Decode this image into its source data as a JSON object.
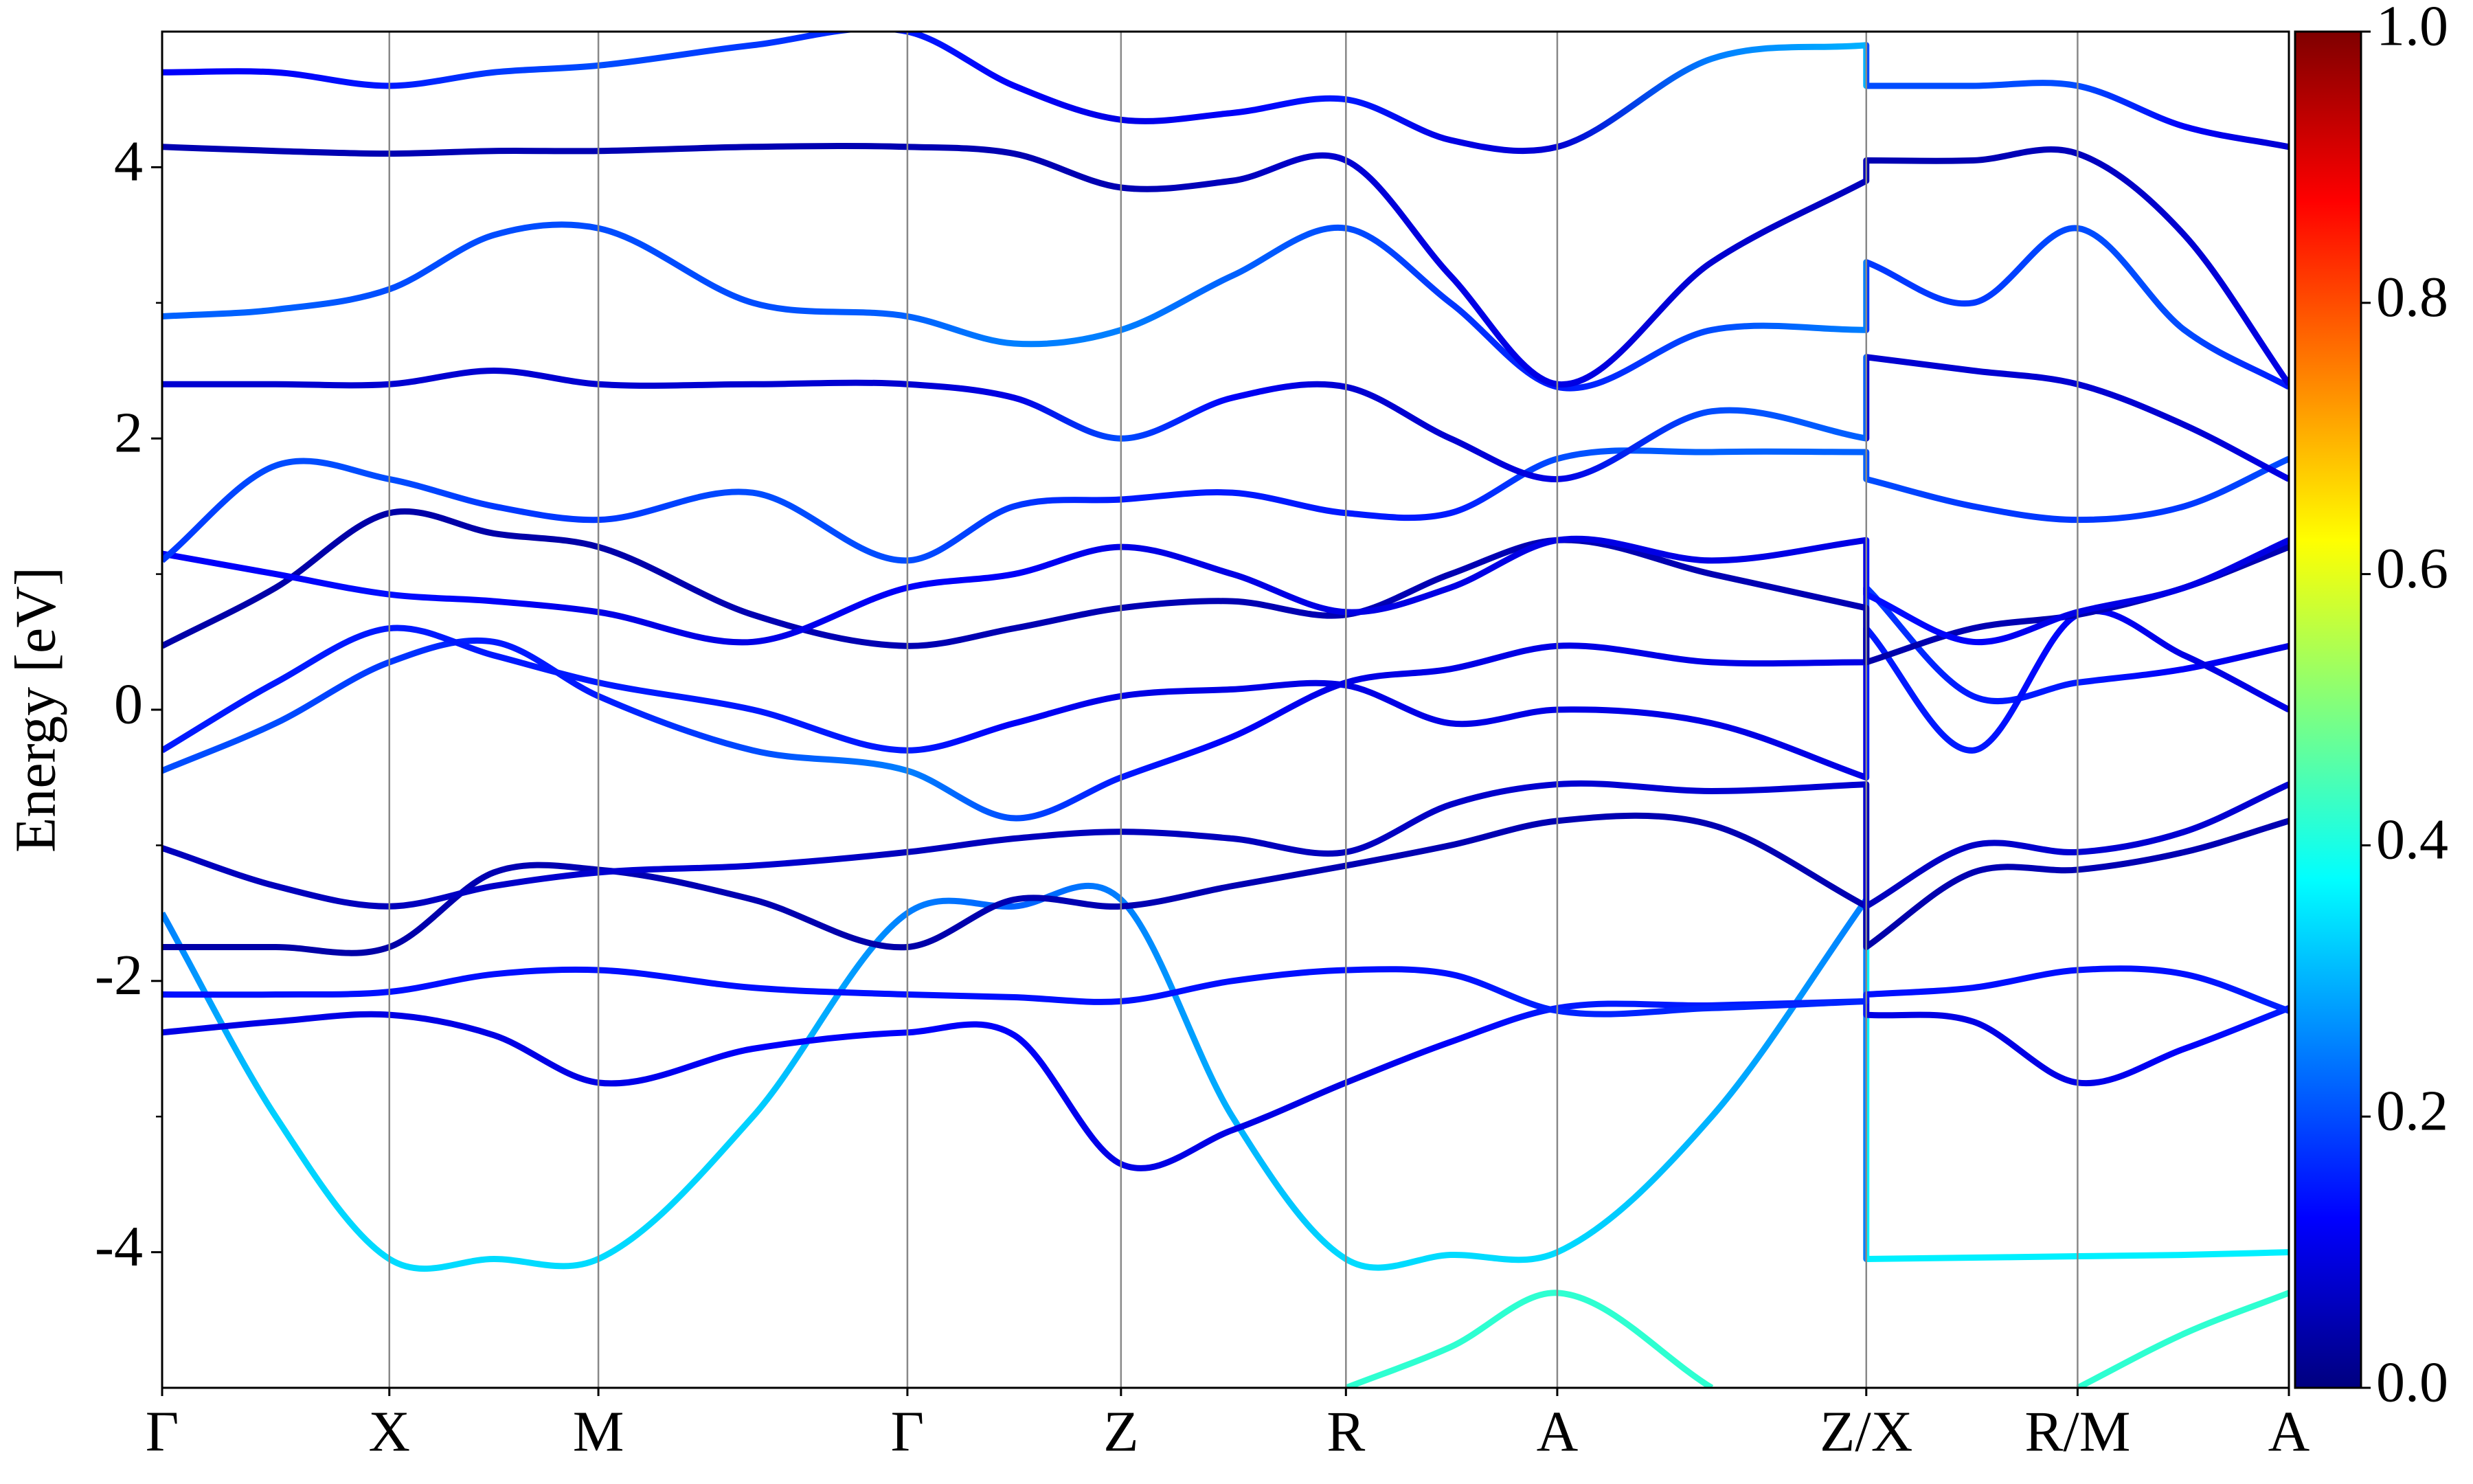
{
  "chart_data": {
    "type": "band",
    "ylabel": "Energy [eV]",
    "xlim": [
      0,
      9.36
    ],
    "ylim": [
      -5,
      5
    ],
    "yticks": [
      -4,
      -2,
      0,
      2,
      4
    ],
    "yminorticks": [
      -3,
      -1,
      1,
      3
    ],
    "xticks": [
      {
        "value": 0,
        "label": "Γ"
      },
      {
        "value": 1.0,
        "label": "X"
      },
      {
        "value": 1.92,
        "label": "M"
      },
      {
        "value": 3.28,
        "label": "Γ"
      },
      {
        "value": 4.22,
        "label": "Z"
      },
      {
        "value": 5.21,
        "label": "R"
      },
      {
        "value": 6.14,
        "label": "A"
      },
      {
        "value": 7.5,
        "label": "Z/X"
      },
      {
        "value": 8.43,
        "label": "R/M"
      },
      {
        "value": 9.36,
        "label": "A"
      }
    ],
    "grid": true,
    "colormap": [
      "#00007f",
      "#0000ff",
      "#007fff",
      "#00ffff",
      "#7fff7f",
      "#ffff00",
      "#ff7f00",
      "#ff0000",
      "#7f0000"
    ],
    "colorbar": {
      "lim": [
        0,
        1
      ],
      "ticks": [
        {
          "value": 0,
          "label": "0.0"
        },
        0.2,
        0.4,
        0.6,
        0.8,
        {
          "value": 1,
          "label": "1.0"
        }
      ]
    },
    "x": [
      0,
      0.5,
      1.0,
      1.46,
      1.92,
      2.6,
      3.28,
      3.75,
      4.22,
      4.71,
      5.21,
      5.67,
      6.14,
      6.82,
      7.5,
      7.5,
      7.97,
      8.43,
      8.9,
      9.36
    ],
    "series": [
      {
        "values": [
          -1.5,
          -3.0,
          -4.05,
          -4.05,
          -4.05,
          -3.0,
          -1.5,
          -1.45,
          -1.4,
          -3.0,
          -4.05,
          -4.02,
          -4.0,
          -3.0,
          -1.4,
          -4.05,
          -4.04,
          -4.03,
          -4.02,
          -4.0
        ],
        "weights": [
          0.25,
          0.33,
          0.34,
          0.34,
          0.34,
          0.33,
          0.25,
          0.22,
          0.25,
          0.3,
          0.34,
          0.34,
          0.34,
          0.3,
          0.25,
          0.36,
          0.36,
          0.36,
          0.36,
          0.36
        ]
      },
      {
        "values": [
          -2.38,
          -2.3,
          -2.25,
          -2.4,
          -2.75,
          -2.5,
          -2.38,
          -2.4,
          -3.35,
          -3.1,
          -2.75,
          -2.45,
          -2.2,
          -2.18,
          -2.15,
          -2.25,
          -2.3,
          -2.75,
          -2.5,
          -2.2
        ],
        "weights": [
          0.1,
          0.1,
          0.1,
          0.1,
          0.1,
          0.12,
          0.12,
          0.12,
          0.1,
          0.1,
          0.1,
          0.12,
          0.15,
          0.15,
          0.15,
          0.1,
          0.1,
          0.1,
          0.12,
          0.15
        ]
      },
      {
        "values": [
          -2.1,
          -2.1,
          -2.08,
          -1.95,
          -1.92,
          -2.05,
          -2.1,
          -2.12,
          -2.15,
          -2.0,
          -1.92,
          -1.95,
          -2.22,
          -2.2,
          -2.15,
          -2.1,
          -2.05,
          -1.92,
          -1.95,
          -2.22
        ],
        "weights": [
          0.14,
          0.14,
          0.14,
          0.14,
          0.14,
          0.14,
          0.14,
          0.14,
          0.14,
          0.14,
          0.14,
          0.14,
          0.16,
          0.16,
          0.16,
          0.14,
          0.14,
          0.14,
          0.14,
          0.16
        ]
      },
      {
        "values": [
          -1.75,
          -1.75,
          -1.75,
          -1.2,
          -1.18,
          -1.4,
          -1.75,
          -1.4,
          -1.45,
          -1.3,
          -1.15,
          -1.0,
          -0.82,
          -0.85,
          -1.45,
          -1.75,
          -1.2,
          -1.18,
          -1.05,
          -0.82
        ],
        "weights": [
          0.04,
          0.04,
          0.04,
          0.05,
          0.05,
          0.05,
          0.04,
          0.05,
          0.05,
          0.05,
          0.05,
          0.05,
          0.05,
          0.05,
          0.05,
          0.04,
          0.05,
          0.05,
          0.05,
          0.05
        ]
      },
      {
        "values": [
          -1.02,
          -1.3,
          -1.45,
          -1.3,
          -1.2,
          -1.15,
          -1.05,
          -0.95,
          -0.9,
          -0.95,
          -1.05,
          -0.7,
          -0.55,
          -0.6,
          -0.55,
          -1.45,
          -1.0,
          -1.05,
          -0.9,
          -0.55
        ],
        "weights": [
          0.06,
          0.06,
          0.06,
          0.07,
          0.08,
          0.08,
          0.06,
          0.06,
          0.06,
          0.06,
          0.06,
          0.07,
          0.08,
          0.08,
          0.08,
          0.06,
          0.07,
          0.08,
          0.08,
          0.08
        ]
      },
      {
        "values": [
          -0.45,
          -0.1,
          0.35,
          0.5,
          0.1,
          -0.3,
          -0.45,
          -0.8,
          -0.5,
          -0.2,
          0.2,
          0.3,
          0.47,
          0.35,
          0.35,
          0.9,
          0.1,
          0.2,
          0.3,
          0.47
        ],
        "weights": [
          0.2,
          0.2,
          0.18,
          0.15,
          0.15,
          0.2,
          0.25,
          0.2,
          0.15,
          0.12,
          0.1,
          0.1,
          0.1,
          0.1,
          0.1,
          0.18,
          0.15,
          0.15,
          0.12,
          0.1
        ]
      },
      {
        "values": [
          -0.3,
          0.2,
          0.6,
          0.4,
          0.2,
          0.0,
          -0.3,
          -0.1,
          0.1,
          0.15,
          0.18,
          -0.1,
          0.0,
          -0.1,
          -0.5,
          0.6,
          -0.3,
          0.7,
          0.4,
          0.0
        ],
        "weights": [
          0.15,
          0.15,
          0.15,
          0.15,
          0.15,
          0.15,
          0.15,
          0.12,
          0.1,
          0.1,
          0.1,
          0.1,
          0.1,
          0.1,
          0.1,
          0.15,
          0.15,
          0.12,
          0.1,
          0.1
        ]
      },
      {
        "values": [
          0.47,
          0.9,
          1.45,
          1.3,
          1.2,
          0.7,
          0.47,
          0.6,
          0.75,
          0.8,
          0.7,
          1.0,
          1.25,
          1.0,
          0.75,
          0.35,
          0.6,
          0.7,
          0.9,
          1.2
        ],
        "weights": [
          0.04,
          0.04,
          0.04,
          0.04,
          0.04,
          0.05,
          0.05,
          0.05,
          0.05,
          0.05,
          0.05,
          0.05,
          0.05,
          0.05,
          0.05,
          0.04,
          0.05,
          0.05,
          0.05,
          0.05
        ]
      },
      {
        "values": [
          1.15,
          1.0,
          0.85,
          0.8,
          0.72,
          0.5,
          0.9,
          1.0,
          1.2,
          1.0,
          0.72,
          0.9,
          1.25,
          1.1,
          1.25,
          0.85,
          0.5,
          0.72,
          0.9,
          1.25
        ],
        "weights": [
          0.12,
          0.12,
          0.14,
          0.12,
          0.1,
          0.1,
          0.12,
          0.12,
          0.1,
          0.1,
          0.1,
          0.1,
          0.1,
          0.1,
          0.1,
          0.14,
          0.12,
          0.1,
          0.1,
          0.1
        ]
      },
      {
        "values": [
          1.1,
          1.8,
          1.7,
          1.5,
          1.4,
          1.6,
          1.1,
          1.5,
          1.55,
          1.6,
          1.45,
          1.45,
          1.85,
          1.9,
          1.9,
          1.7,
          1.5,
          1.4,
          1.5,
          1.85
        ],
        "weights": [
          0.18,
          0.2,
          0.2,
          0.18,
          0.18,
          0.2,
          0.2,
          0.18,
          0.15,
          0.15,
          0.15,
          0.15,
          0.2,
          0.22,
          0.22,
          0.2,
          0.18,
          0.18,
          0.18,
          0.2
        ]
      },
      {
        "values": [
          2.4,
          2.4,
          2.4,
          2.5,
          2.4,
          2.4,
          2.4,
          2.3,
          2.0,
          2.3,
          2.38,
          2.0,
          1.7,
          2.2,
          2.0,
          2.6,
          2.5,
          2.4,
          2.1,
          1.7
        ],
        "weights": [
          0.08,
          0.08,
          0.08,
          0.08,
          0.08,
          0.08,
          0.08,
          0.1,
          0.2,
          0.12,
          0.08,
          0.08,
          0.1,
          0.2,
          0.22,
          0.08,
          0.08,
          0.08,
          0.08,
          0.1
        ]
      },
      {
        "values": [
          2.9,
          2.95,
          3.1,
          3.5,
          3.55,
          3.0,
          2.9,
          2.7,
          2.8,
          3.2,
          3.55,
          3.0,
          2.38,
          2.8,
          2.8,
          3.3,
          3.0,
          3.55,
          2.8,
          2.38
        ],
        "weights": [
          0.22,
          0.22,
          0.2,
          0.2,
          0.2,
          0.2,
          0.22,
          0.25,
          0.25,
          0.22,
          0.2,
          0.18,
          0.15,
          0.2,
          0.25,
          0.18,
          0.18,
          0.2,
          0.2,
          0.15
        ]
      },
      {
        "values": [
          4.15,
          4.12,
          4.1,
          4.12,
          4.12,
          4.15,
          4.15,
          4.1,
          3.85,
          3.9,
          4.05,
          3.2,
          2.4,
          3.3,
          3.9,
          4.05,
          4.05,
          4.1,
          3.5,
          2.4
        ],
        "weights": [
          0.05,
          0.05,
          0.05,
          0.05,
          0.05,
          0.05,
          0.05,
          0.05,
          0.05,
          0.06,
          0.08,
          0.1,
          0.1,
          0.08,
          0.06,
          0.05,
          0.05,
          0.06,
          0.08,
          0.1
        ]
      },
      {
        "values": [
          4.7,
          4.7,
          4.6,
          4.7,
          4.75,
          4.9,
          5.0,
          4.6,
          4.35,
          4.4,
          4.5,
          4.2,
          4.15,
          4.8,
          4.9,
          4.6,
          4.6,
          4.6,
          4.3,
          4.15
        ],
        "weights": [
          0.12,
          0.12,
          0.15,
          0.18,
          0.2,
          0.18,
          0.15,
          0.12,
          0.1,
          0.12,
          0.15,
          0.1,
          0.08,
          0.25,
          0.3,
          0.2,
          0.2,
          0.2,
          0.12,
          0.08
        ]
      },
      {
        "values": [
          null,
          null,
          null,
          null,
          null,
          null,
          null,
          null,
          null,
          null,
          -5.0,
          -4.7,
          -4.3,
          -5.0,
          null,
          null,
          null,
          -5.0,
          -4.6,
          -4.3
        ],
        "weights": [
          null,
          null,
          null,
          null,
          null,
          null,
          null,
          null,
          null,
          null,
          0.42,
          0.42,
          0.42,
          0.42,
          null,
          null,
          null,
          0.42,
          0.42,
          0.42
        ]
      }
    ]
  }
}
